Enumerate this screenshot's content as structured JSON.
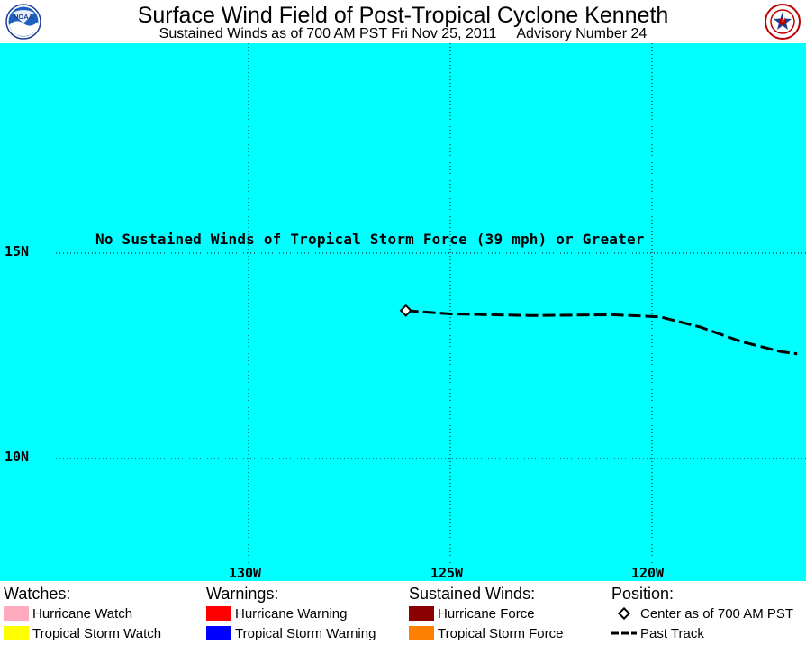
{
  "header": {
    "title": "Surface Wind Field of Post-Tropical Cyclone Kenneth",
    "subtitle_left": "Sustained Winds as of 700 AM PST Fri Nov 25, 2011",
    "subtitle_right": "Advisory Number 24",
    "left_logo_icon": "noaa-logo-icon",
    "left_logo_text": "NOAA",
    "right_logo_icon": "nws-logo-icon"
  },
  "map": {
    "background_color": "#00ffff",
    "notice": "No Sustained Winds of Tropical Storm Force (39 mph) or Greater",
    "latitude_labels": [
      "15N",
      "10N"
    ],
    "longitude_labels": [
      "130W",
      "125W",
      "120W"
    ],
    "storm_center": {
      "lon": -126.1,
      "lat": 13.6
    },
    "past_track": [
      {
        "lon": -126.1,
        "lat": 13.6
      },
      {
        "lon": -125.0,
        "lat": 13.52
      },
      {
        "lon": -123.0,
        "lat": 13.48
      },
      {
        "lon": -121.0,
        "lat": 13.5
      },
      {
        "lon": -119.8,
        "lat": 13.45
      },
      {
        "lon": -118.8,
        "lat": 13.2
      },
      {
        "lon": -117.8,
        "lat": 12.85
      },
      {
        "lon": -116.8,
        "lat": 12.6
      },
      {
        "lon": -116.4,
        "lat": 12.55
      }
    ]
  },
  "legend": {
    "watches": {
      "heading": "Watches:",
      "items": [
        {
          "label": "Hurricane Watch",
          "color": "#ffaabf"
        },
        {
          "label": "Tropical Storm Watch",
          "color": "#ffff00"
        }
      ]
    },
    "warnings": {
      "heading": "Warnings:",
      "items": [
        {
          "label": "Hurricane Warning",
          "color": "#ff0000"
        },
        {
          "label": "Tropical Storm Warning",
          "color": "#0000ff"
        }
      ]
    },
    "winds": {
      "heading": "Sustained Winds:",
      "items": [
        {
          "label": "Hurricane Force",
          "color": "#8b0000"
        },
        {
          "label": "Tropical Storm Force",
          "color": "#ff8000"
        }
      ]
    },
    "position": {
      "heading": "Position:",
      "items": [
        {
          "label": "Center as of 700 AM PST",
          "icon": "diamond-marker-icon"
        },
        {
          "label": "Past Track",
          "icon": "dashed-line-icon"
        }
      ]
    }
  }
}
